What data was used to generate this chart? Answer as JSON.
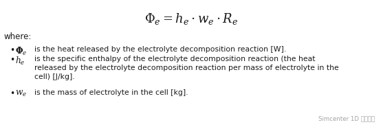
{
  "bg_color": "#ffffff",
  "formula": "$\\Phi_e = h_e \\cdot w_e \\cdot R_e$",
  "where_text": "where:",
  "bullet1_math": "$\\mathbf{\\Phi}_e$",
  "bullet1_body": "is the heat released by the electrolyte decomposition reaction [W].",
  "bullet2_math": "$\\mathit{h}_e$",
  "bullet2_body": "is the specific enthalpy of the electrolyte decomposition reaction (the heat\nreleased by the electrolyte decomposition reaction per mass of electrolyte in the\ncell) [J/kg].",
  "bullet3_math": "$\\mathit{w}_e$",
  "bullet3_body": "is the mass of electrolyte in the cell [kg].",
  "watermark": "Simcenter 1D 系统仿真",
  "text_color": "#1a1a1a",
  "formula_fontsize": 13,
  "body_fontsize": 7.8,
  "where_fontsize": 8.5
}
